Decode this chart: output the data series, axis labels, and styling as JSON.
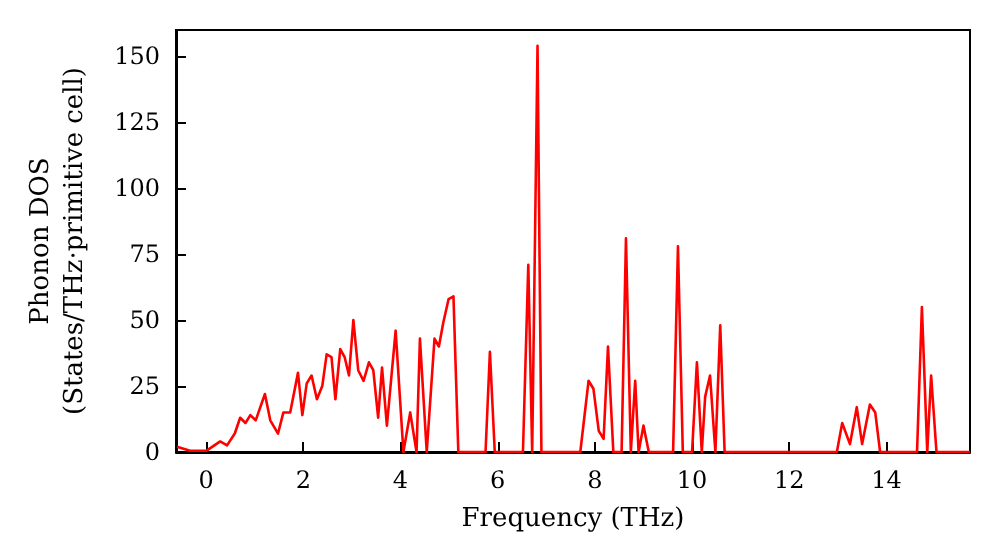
{
  "chart_data": {
    "type": "line",
    "xlabel": "Frequency (THz)",
    "ylabel": "Phonon DOS\n(States/THz·primitive cell)",
    "x": [
      -0.6,
      -0.33,
      0.01,
      0.29,
      0.43,
      0.59,
      0.7,
      0.81,
      0.91,
      1.02,
      1.21,
      1.32,
      1.48,
      1.59,
      1.73,
      1.89,
      1.98,
      2.07,
      2.17,
      2.28,
      2.39,
      2.48,
      2.58,
      2.66,
      2.76,
      2.85,
      2.94,
      3.03,
      3.13,
      3.24,
      3.35,
      3.44,
      3.54,
      3.62,
      3.72,
      3.9,
      4.06,
      4.2,
      4.33,
      4.4,
      4.54,
      4.7,
      4.79,
      4.88,
      4.99,
      5.09,
      5.19,
      5.75,
      5.84,
      5.94,
      6.52,
      6.63,
      6.71,
      6.82,
      6.9,
      7.7,
      7.87,
      7.97,
      8.08,
      8.18,
      8.27,
      8.38,
      8.55,
      8.64,
      8.74,
      8.83,
      8.9,
      9.0,
      9.11,
      9.61,
      9.71,
      9.81,
      10.0,
      10.1,
      10.2,
      10.27,
      10.37,
      10.48,
      10.58,
      10.67,
      12.98,
      13.09,
      13.25,
      13.39,
      13.5,
      13.66,
      13.77,
      13.87,
      14.63,
      14.73,
      14.84,
      14.92,
      15.03,
      15.72
    ],
    "series": [
      {
        "color": "#ff0000",
        "values": [
          2,
          0.5,
          0.5,
          4,
          2.5,
          7,
          13,
          11,
          14,
          12,
          22,
          12,
          7,
          15,
          15,
          30,
          14,
          26,
          29,
          20,
          25,
          37,
          36,
          20,
          39,
          36,
          29,
          50,
          31,
          27,
          34,
          31,
          13,
          32,
          10,
          46,
          0,
          15,
          0,
          43,
          0,
          43,
          40,
          49,
          58,
          59,
          0,
          0,
          38,
          0,
          0,
          71,
          0,
          154,
          0,
          0,
          27,
          24,
          8,
          5,
          40,
          0,
          0,
          81,
          0,
          27,
          0,
          10,
          0,
          0,
          78,
          0,
          0,
          34,
          0,
          21,
          29,
          0,
          48,
          0,
          0,
          11,
          3,
          17,
          3,
          18,
          15,
          0,
          0,
          55,
          0,
          29,
          0,
          0
        ]
      }
    ],
    "xlim": [
      -0.62,
      15.72
    ],
    "xticks": [
      0,
      2,
      4,
      6,
      8,
      10,
      12,
      14
    ],
    "ylim": [
      0,
      160
    ],
    "yticks": [
      0,
      25,
      50,
      75,
      100,
      125,
      150
    ],
    "marker": "none",
    "line_style": "solid"
  }
}
